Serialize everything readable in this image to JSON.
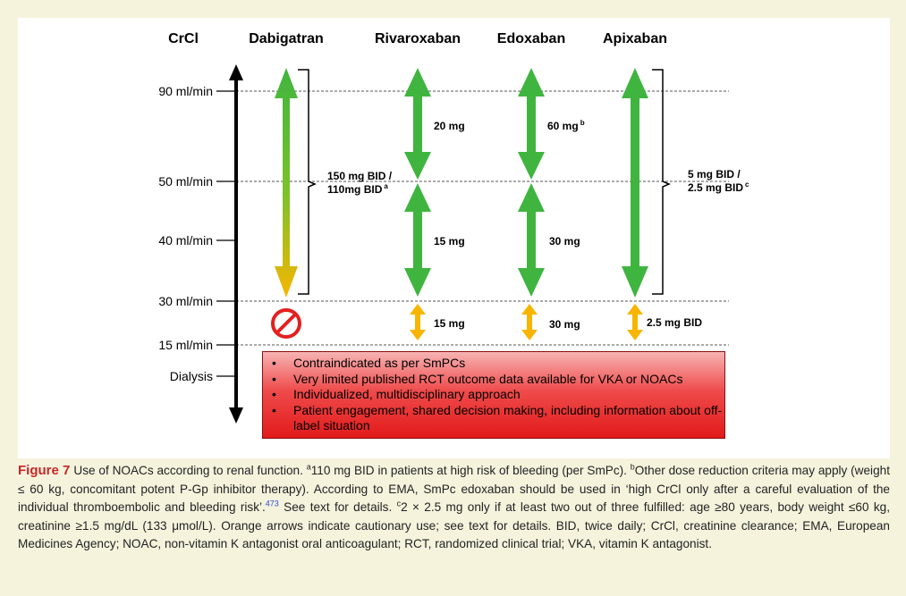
{
  "header": {
    "crcl": "CrCl",
    "drugs": [
      "Dabigatran",
      "Rivaroxaban",
      "Edoxaban",
      "Apixaban"
    ]
  },
  "levels": [
    "90 ml/min",
    "50 ml/min",
    "40 ml/min",
    "30 ml/min",
    "15 ml/min",
    "Dialysis"
  ],
  "doses": {
    "dabigatran_main": "150 mg BID /",
    "dabigatran_main2": "110mg BID",
    "dabigatran_sup": "a",
    "rivaroxaban_high": "20 mg",
    "rivaroxaban_low": "15 mg",
    "rivaroxaban_caution": "15 mg",
    "edoxaban_high": "60 mg",
    "edoxaban_sup": "b",
    "edoxaban_low": "30 mg",
    "edoxaban_caution": "30 mg",
    "apixaban_main": "5 mg BID /",
    "apixaban_main2": "2.5 mg BID",
    "apixaban_sup": "c",
    "apixaban_caution": "2.5 mg BID"
  },
  "redbox_items": [
    "Contraindicated as per SmPCs",
    "Very limited published RCT outcome data available for VKA or NOACs",
    "Individualized, multidisciplinary approach",
    "Patient engagement, shared decision making, including information about off-label situation"
  ],
  "colors": {
    "green": "#3fb53f",
    "orange": "#f7b500",
    "red": "#e3201f",
    "figure_label": "#c62828"
  },
  "icons": [
    "prohibition-icon",
    "double-arrow-icon"
  ],
  "caption": {
    "figure_label": "Figure 7",
    "p1": "Use of NOACs according to renal function. ",
    "sup_a": "a",
    "p2": "110 mg BID in patients at high risk of bleeding (per SmPc). ",
    "sup_b": "b",
    "p3": "Other dose reduction criteria may apply (weight ≤ 60 kg, concomitant potent P-Gp inhibitor therapy). According to EMA, SmPc edoxaban should be used in ‘high CrCl only after a careful evaluation of the individual thromboembolic and bleeding risk’.",
    "ref": "473",
    "p4": " See text for details. ",
    "sup_c": "c",
    "p5": "2 × 2.5 mg only if at least two out of three fulfilled: age ≥80 years, body weight ≤60 kg, creatinine ≥1.5 mg/dL (133 μmol/L). Orange arrows indicate cautionary use; see text for details. BID, twice daily; CrCl, creatinine clearance; EMA, European Medicines Agency; NOAC, non-vitamin K antagonist oral anticoagulant; RCT, randomized clinical trial; VKA, vitamin K antagonist."
  }
}
